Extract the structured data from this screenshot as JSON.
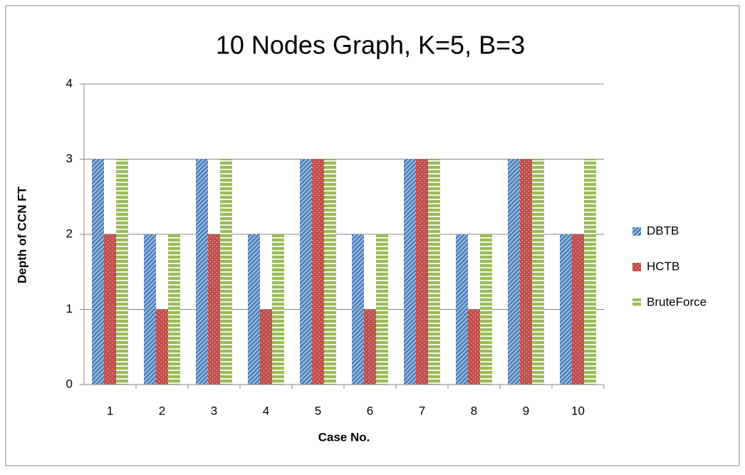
{
  "chart_data": {
    "type": "bar",
    "title": "10 Nodes Graph, K=5, B=3",
    "x_label": "Case No.",
    "y_label": "Depth of CCN FT",
    "categories": [
      "1",
      "2",
      "3",
      "4",
      "5",
      "6",
      "7",
      "8",
      "9",
      "10"
    ],
    "series": [
      {
        "name": "DBTB",
        "color": "#4f81bd",
        "pattern": "diagonal",
        "values": [
          3,
          2,
          3,
          2,
          3,
          2,
          3,
          2,
          3,
          2
        ]
      },
      {
        "name": "HCTB",
        "color": "#c0504d",
        "pattern": "dots",
        "values": [
          2,
          1,
          2,
          1,
          3,
          1,
          3,
          1,
          3,
          2
        ]
      },
      {
        "name": "BruteForce",
        "color": "#9bbb59",
        "pattern": "horizontal",
        "values": [
          3,
          2,
          3,
          2,
          3,
          2,
          3,
          2,
          3,
          3
        ]
      }
    ],
    "ylim": [
      0,
      4
    ],
    "yticks": [
      0,
      1,
      2,
      3,
      4
    ],
    "grid": true,
    "legend": "right"
  }
}
